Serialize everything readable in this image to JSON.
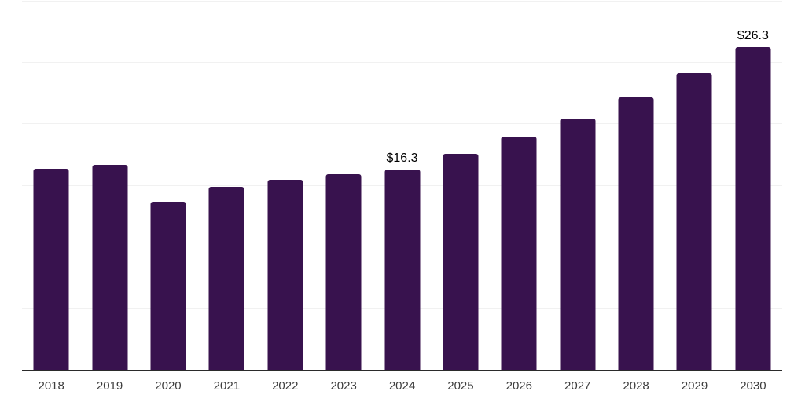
{
  "chart_data": {
    "type": "bar",
    "title": "",
    "categories": [
      "2018",
      "2019",
      "2020",
      "2021",
      "2022",
      "2023",
      "2024",
      "2025",
      "2026",
      "2027",
      "2028",
      "2029",
      "2030"
    ],
    "values": [
      16.4,
      16.7,
      13.7,
      14.9,
      15.5,
      15.9,
      16.3,
      17.6,
      19.0,
      20.5,
      22.2,
      24.2,
      26.3
    ],
    "point_labels": [
      "",
      "",
      "",
      "",
      "",
      "",
      "$16.3",
      "",
      "",
      "",
      "",
      "",
      "$26.3"
    ],
    "unit_prefix": "$",
    "xlabel": "",
    "ylabel": "",
    "ylim": [
      0,
      30
    ],
    "gridline_step": 5,
    "grid": true,
    "yaxis_tick_labels_visible": false,
    "legend": "none",
    "colors": {
      "bar": "#38124E",
      "gridline": "#f1f1f1",
      "axis_line": "#2b2b2b",
      "tick_label": "#3d3d3d",
      "data_label": "#000000",
      "background": "#ffffff"
    }
  }
}
